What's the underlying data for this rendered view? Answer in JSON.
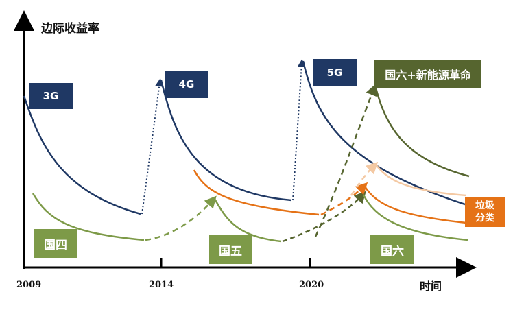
{
  "y_axis_label": "边际收益率",
  "x_axis_label": "时间",
  "year_labels": [
    "2009",
    "2014",
    "2020"
  ],
  "tech_labels": [
    "3G",
    "4G",
    "5G"
  ],
  "emission_labels": [
    "国四",
    "国五",
    "国六"
  ],
  "revolution_label": "国六+新能源革命",
  "waste_label_line1": "垃圾",
  "waste_label_line2": "分类",
  "colors": {
    "navy": "#1f3864",
    "light_green": "#7d9a48",
    "olive": "#56652f",
    "orange": "#e57216",
    "light_orange": "#f4c9a3"
  }
}
